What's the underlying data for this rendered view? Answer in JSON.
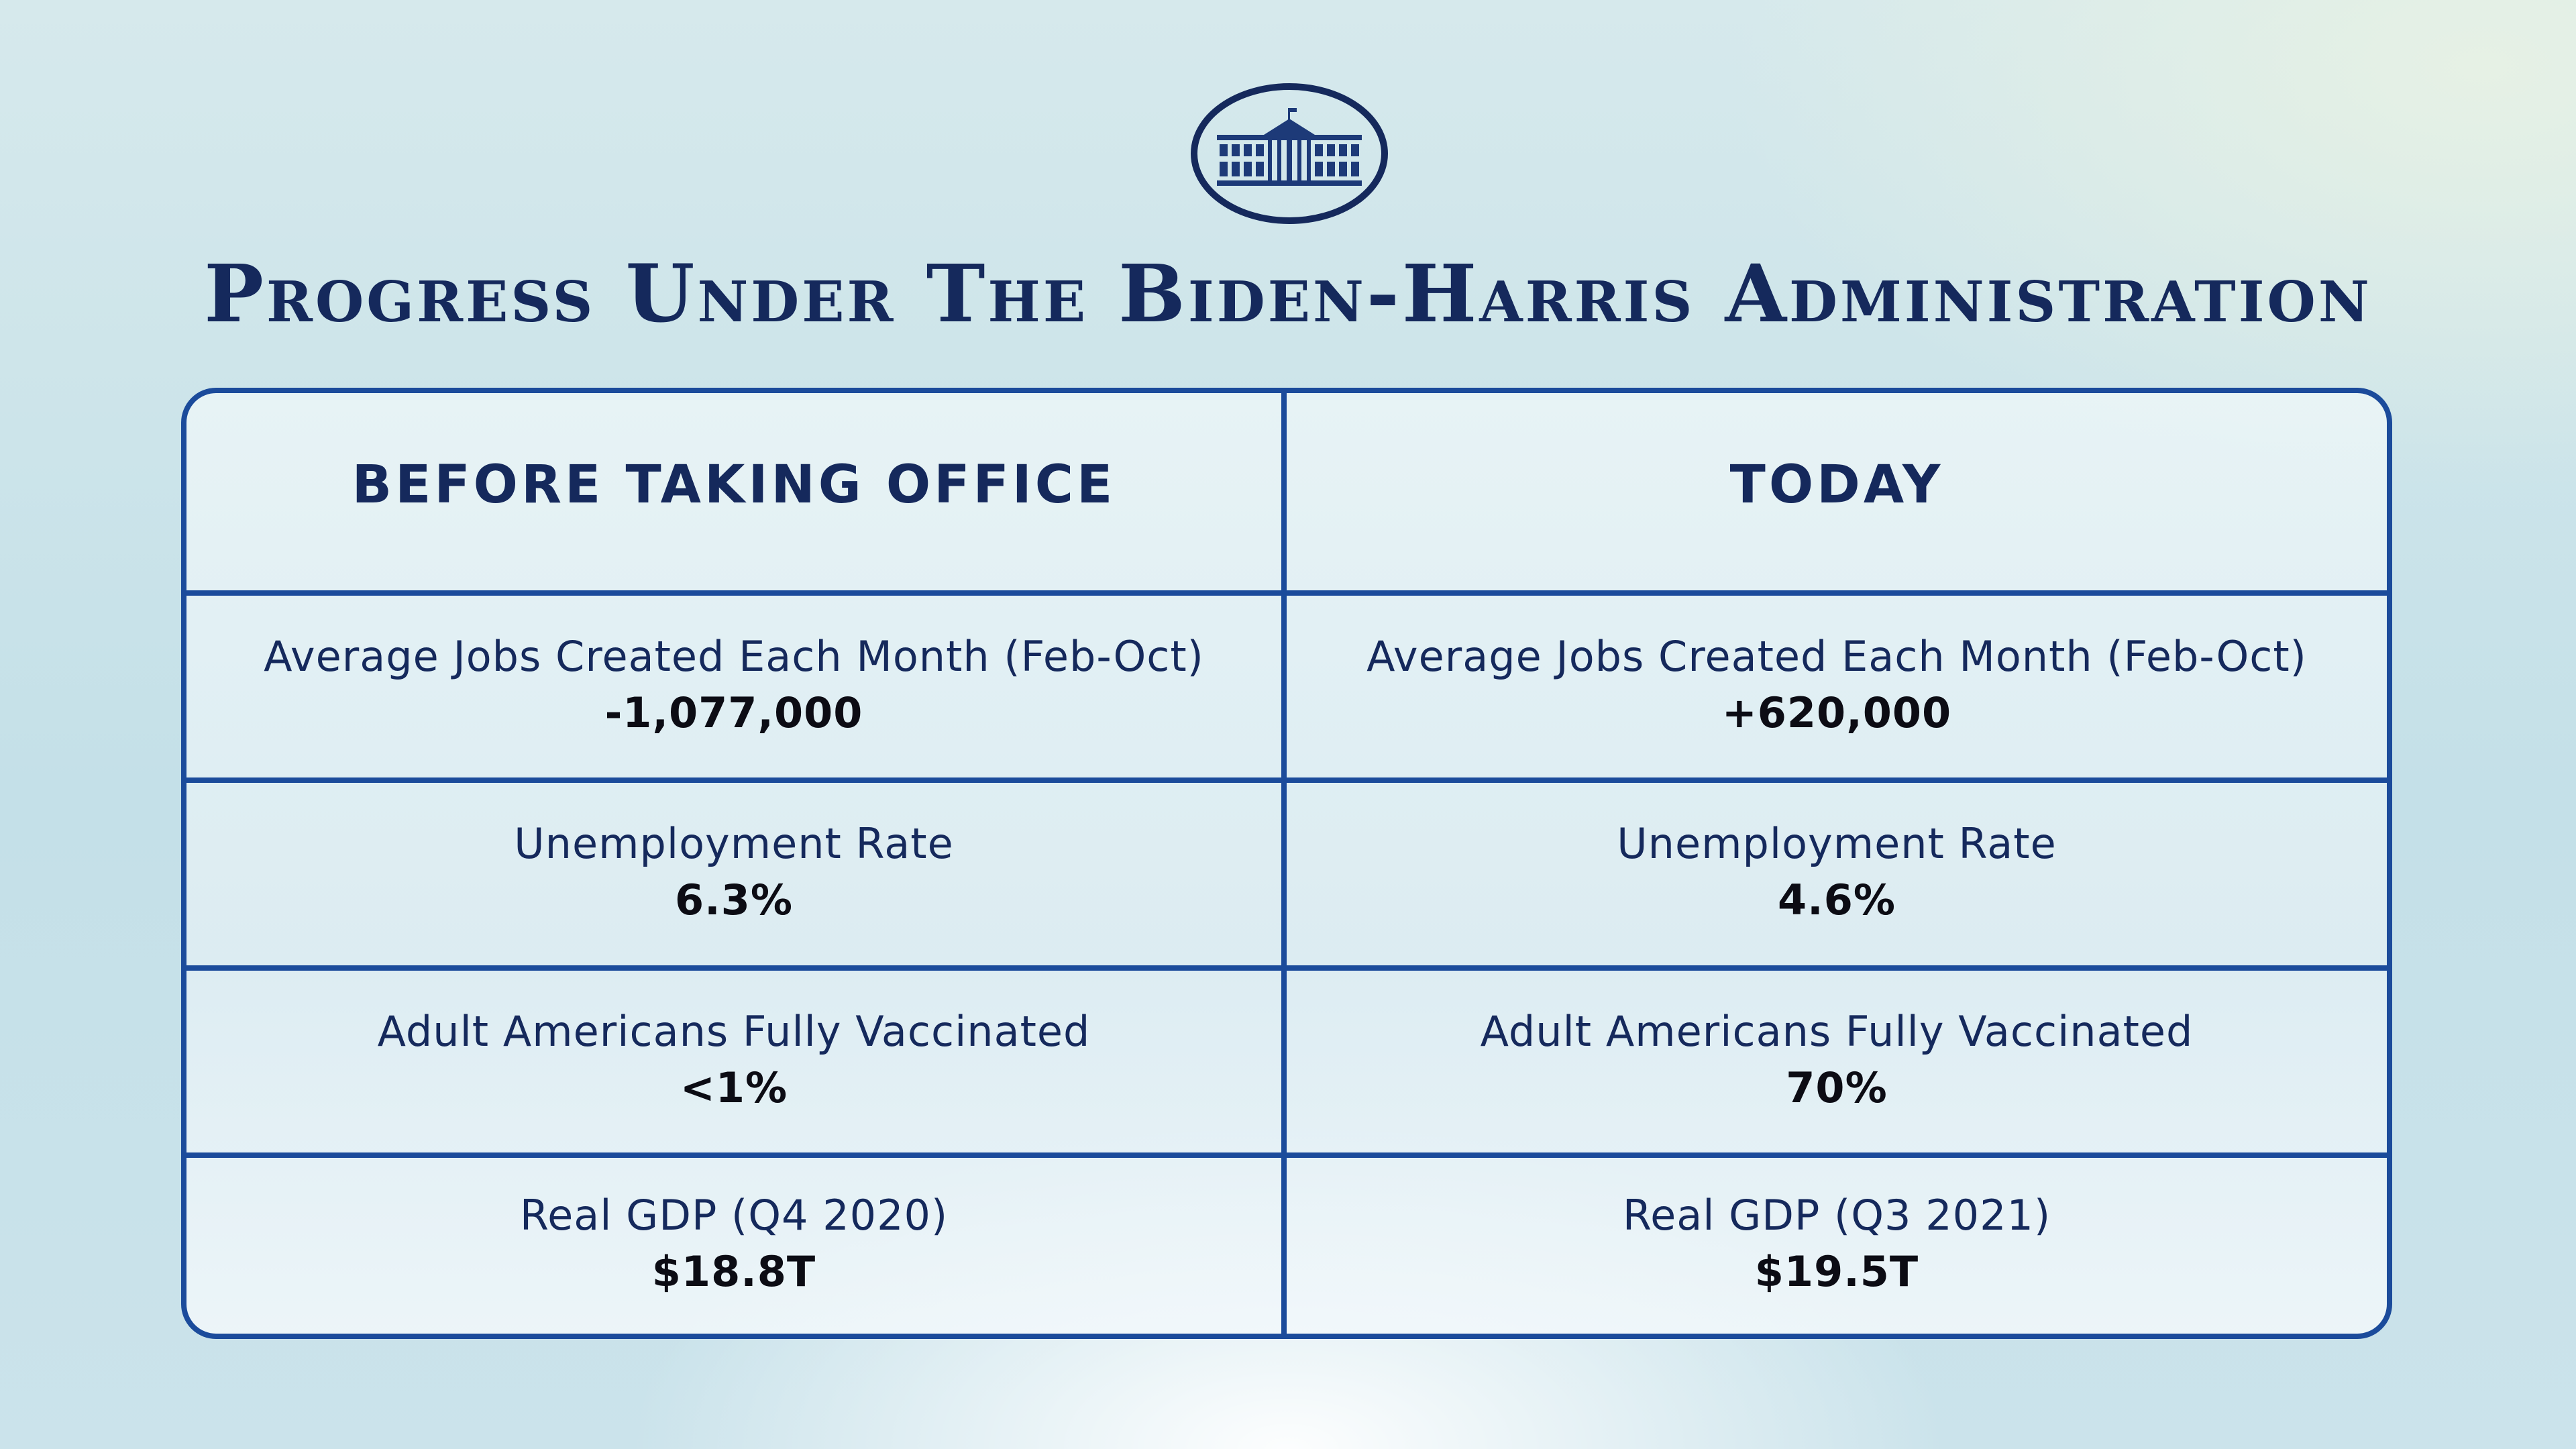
{
  "title": "Progress Under The Biden-Harris Administration",
  "columns": {
    "left_header": "BEFORE TAKING OFFICE",
    "right_header": "TODAY"
  },
  "rows": [
    {
      "label_left": "Average Jobs Created Each Month (Feb-Oct)",
      "value_left": "-1,077,000",
      "label_right": "Average Jobs Created Each Month (Feb-Oct)",
      "value_right": "+620,000"
    },
    {
      "label_left": "Unemployment Rate",
      "value_left": "6.3%",
      "label_right": "Unemployment Rate",
      "value_right": "4.6%"
    },
    {
      "label_left": "Adult Americans Fully Vaccinated",
      "value_left": "<1%",
      "label_right": "Adult Americans Fully Vaccinated",
      "value_right": "70%"
    },
    {
      "label_left": "Real GDP (Q4 2020)",
      "value_left": "$18.8T",
      "label_right": "Real GDP (Q3 2021)",
      "value_right": "$19.5T"
    }
  ],
  "colors": {
    "navy": "#15295c",
    "border_blue": "#1b4b9b",
    "value_text": "#0c0c14"
  },
  "icons": {
    "seal": "white-house-seal-icon"
  }
}
